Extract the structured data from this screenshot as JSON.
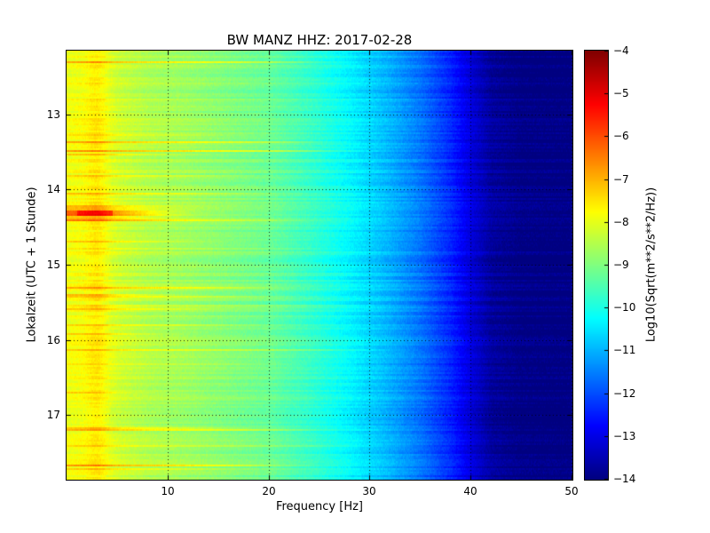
{
  "chart_data": {
    "type": "heatmap",
    "title": "BW MANZ HHZ: 2017-02-28",
    "xlabel": "Frequency [Hz]",
    "ylabel": "Lokalzeit (UTC + 1 Stunde)",
    "xlim": [
      0,
      50
    ],
    "ylim_time_hours": [
      12.15,
      17.85
    ],
    "x_ticks": [
      10,
      20,
      30,
      40,
      50
    ],
    "y_ticks": [
      13,
      14,
      15,
      16,
      17
    ],
    "grid": true,
    "grid_style": "dotted",
    "colormap": "jet",
    "colorbar": {
      "label": "Log10(Sqrt(m**2/s**2/Hz))",
      "ticks": [
        -4,
        -5,
        -6,
        -7,
        -8,
        -9,
        -10,
        -11,
        -12,
        -13,
        -14
      ],
      "vmin": -14,
      "vmax": -4
    },
    "spectral_profile": {
      "frequency_hz": [
        0,
        1,
        3,
        5,
        8,
        12,
        16,
        20,
        24,
        28,
        32,
        35,
        38,
        40,
        42,
        45,
        50
      ],
      "log10_amplitude": [
        -7.9,
        -7.85,
        -7.9,
        -8.2,
        -8.5,
        -8.7,
        -8.95,
        -9.2,
        -9.7,
        -10.3,
        -11.0,
        -11.6,
        -12.4,
        -13.1,
        -13.7,
        -13.95,
        -14.0
      ]
    },
    "features": {
      "persistent_band_hz": 3,
      "transient_event": {
        "time_hours": 14.3,
        "peak_value": -6.3,
        "freq_extent_hz": 8
      }
    }
  }
}
